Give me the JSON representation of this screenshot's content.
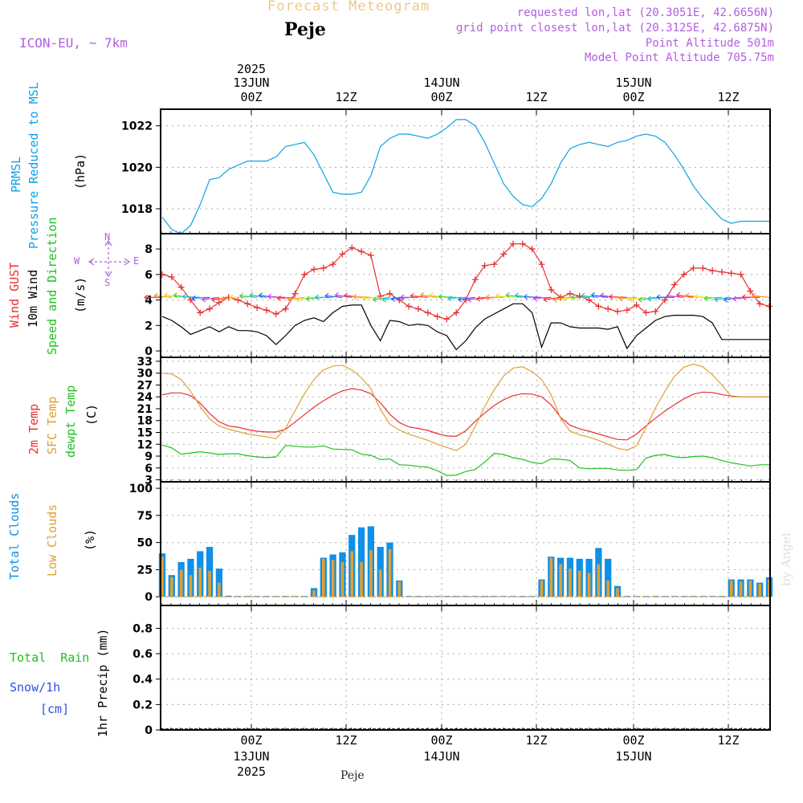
{
  "header": {
    "title": "Forecast Meteogram",
    "location": "Peje",
    "model": "ICON-EU, ~ 7km",
    "requested": "requested lon,lat (20.3051E, 42.6656N)",
    "gridpoint": "grid point closest lon,lat (20.3125E, 42.6875N)",
    "point_alt": "Point Altitude 501m",
    "model_alt": "Model Point Altitude 705.75m"
  },
  "top_axis": [
    {
      "lines": [
        "2025",
        "13JUN",
        "00Z"
      ]
    },
    {
      "lines": [
        "",
        "",
        "12Z"
      ]
    },
    {
      "lines": [
        "",
        "14JUN",
        "00Z"
      ]
    },
    {
      "lines": [
        "",
        "",
        "12Z"
      ]
    },
    {
      "lines": [
        "",
        "15JUN",
        "00Z"
      ]
    },
    {
      "lines": [
        "",
        "",
        "12Z"
      ]
    }
  ],
  "bottom_axis": [
    {
      "lines": [
        "00Z",
        "13JUN",
        "2025"
      ]
    },
    {
      "lines": [
        "12Z",
        "",
        ""
      ]
    },
    {
      "lines": [
        "00Z",
        "14JUN",
        ""
      ]
    },
    {
      "lines": [
        "12Z",
        "",
        ""
      ]
    },
    {
      "lines": [
        "00Z",
        "15JUN",
        ""
      ]
    },
    {
      "lines": [
        "12Z",
        "",
        ""
      ]
    }
  ],
  "footer_location": "Peje",
  "watermark": "by Angel",
  "panel_labels": {
    "pressure": {
      "l1": "PRMSL",
      "l2": "Pressure Reduced to MSL",
      "unit": "(hPa)"
    },
    "wind": {
      "l1": "Wind GUST",
      "l2": "10m Wind",
      "l3": "Speed and Direction",
      "unit": "(m/s)",
      "compass_n": "N",
      "compass_s": "S",
      "compass_w": "W",
      "compass_e": "E"
    },
    "temp": {
      "l1": "2m Temp",
      "l2": "SFC Temp",
      "l3": "dewpt Temp",
      "unit": "(C)"
    },
    "cloud": {
      "l1": "Total Clouds",
      "l2": "Low Clouds",
      "unit": "(%)"
    },
    "precip": {
      "l1": "Total",
      "l1b": "Rain",
      "l2": "Snow/1h",
      "l3": "[cm]",
      "unit": "1hr Precip (mm)"
    }
  },
  "colors": {
    "pressure": "#10a0e8",
    "gust": "#e83030",
    "wind": "#000000",
    "temp2m": "#e83030",
    "sfc": "#e0a030",
    "dewpt": "#20c020",
    "total_cloud": "#1090e8",
    "low_cloud": "#e0a030",
    "rain": "#20c020",
    "snow": "#3050e0",
    "label_purple": "#b060e0"
  },
  "chart_data": [
    {
      "type": "line",
      "name": "pressure",
      "ylabel": "(hPa)",
      "ylim": [
        1016.8,
        1022.8
      ],
      "yticks": [
        1018,
        1020,
        1022
      ],
      "x_hours": [
        0,
        1,
        2,
        3,
        4,
        5,
        6,
        7,
        8,
        9,
        10,
        11,
        12,
        13,
        14,
        15,
        16,
        17,
        18,
        19,
        20,
        21,
        22,
        23,
        24,
        25,
        26,
        27,
        28,
        29,
        30,
        31,
        32,
        33,
        34,
        35,
        36,
        37,
        38,
        39,
        40,
        41,
        42,
        43,
        44,
        45,
        46,
        47,
        48,
        49,
        50,
        51,
        52,
        53,
        54,
        55,
        56,
        57,
        58,
        59,
        60,
        61,
        62,
        63,
        64
      ],
      "series": [
        {
          "name": "PRMSL",
          "values": [
            1017.6,
            1017.0,
            1016.8,
            1017.2,
            1018.2,
            1019.4,
            1019.5,
            1019.9,
            1020.1,
            1020.3,
            1020.3,
            1020.3,
            1020.5,
            1021.0,
            1021.1,
            1021.2,
            1020.6,
            1019.7,
            1018.8,
            1018.7,
            1018.7,
            1018.8,
            1019.6,
            1021.0,
            1021.4,
            1021.6,
            1021.6,
            1021.5,
            1021.4,
            1021.6,
            1021.9,
            1022.3,
            1022.3,
            1022.0,
            1021.2,
            1020.2,
            1019.2,
            1018.6,
            1018.2,
            1018.1,
            1018.5,
            1019.2,
            1020.2,
            1020.9,
            1021.1,
            1021.2,
            1021.1,
            1021.0,
            1021.2,
            1021.3,
            1021.5,
            1021.6,
            1021.5,
            1021.2,
            1020.6,
            1019.9,
            1019.1,
            1018.5,
            1018.0,
            1017.5,
            1017.3,
            1017.4,
            1017.4,
            1017.4,
            1017.4
          ]
        }
      ]
    },
    {
      "type": "line",
      "name": "wind",
      "ylabel": "(m/s)",
      "ylim": [
        -0.5,
        9.2
      ],
      "yticks": [
        0,
        2,
        4,
        6,
        8
      ],
      "x_hours": [
        0,
        1,
        2,
        3,
        4,
        5,
        6,
        7,
        8,
        9,
        10,
        11,
        12,
        13,
        14,
        15,
        16,
        17,
        18,
        19,
        20,
        21,
        22,
        23,
        24,
        25,
        26,
        27,
        28,
        29,
        30,
        31,
        32,
        33,
        34,
        35,
        36,
        37,
        38,
        39,
        40,
        41,
        42,
        43,
        44,
        45,
        46,
        47,
        48,
        49,
        50,
        51,
        52,
        53,
        54,
        55,
        56,
        57,
        58,
        59,
        60,
        61,
        62,
        63,
        64
      ],
      "series": [
        {
          "name": "Wind GUST",
          "values": [
            6.0,
            5.8,
            5.0,
            4.0,
            3.0,
            3.3,
            3.8,
            4.2,
            4.0,
            3.7,
            3.4,
            3.2,
            2.9,
            3.3,
            4.5,
            6.0,
            6.4,
            6.5,
            6.8,
            7.6,
            8.1,
            7.8,
            7.5,
            4.3,
            4.5,
            4.0,
            3.5,
            3.3,
            3.0,
            2.7,
            2.5,
            3.0,
            4.0,
            5.6,
            6.7,
            6.8,
            7.6,
            8.4,
            8.4,
            8.0,
            6.8,
            4.8,
            4.2,
            4.5,
            4.3,
            4.0,
            3.5,
            3.3,
            3.1,
            3.2,
            3.6,
            3.0,
            3.1,
            4.0,
            5.2,
            6.0,
            6.5,
            6.5,
            6.3,
            6.2,
            6.1,
            6.0,
            4.7,
            3.7,
            3.5
          ]
        },
        {
          "name": "10m Wind",
          "values": [
            2.7,
            2.4,
            1.9,
            1.3,
            1.6,
            1.9,
            1.5,
            1.9,
            1.6,
            1.6,
            1.5,
            1.2,
            0.5,
            1.2,
            2.0,
            2.4,
            2.6,
            2.3,
            3.0,
            3.5,
            3.6,
            3.6,
            2.0,
            0.8,
            2.4,
            2.3,
            2.0,
            2.1,
            2.0,
            1.5,
            1.2,
            0.1,
            0.8,
            1.8,
            2.5,
            2.9,
            3.3,
            3.7,
            3.7,
            3.0,
            0.3,
            2.2,
            2.2,
            1.9,
            1.8,
            1.8,
            1.8,
            1.7,
            1.9,
            0.2,
            1.2,
            1.8,
            2.4,
            2.7,
            2.8,
            2.8,
            2.8,
            2.7,
            2.2,
            0.9,
            0.9,
            0.9,
            0.9,
            0.9,
            0.9
          ]
        }
      ]
    },
    {
      "type": "line",
      "name": "temperature",
      "ylabel": "(C)",
      "ylim": [
        2.5,
        34
      ],
      "yticks": [
        3,
        6,
        9,
        12,
        15,
        18,
        21,
        24,
        27,
        30,
        33
      ],
      "x_hours": [
        0,
        1,
        2,
        3,
        4,
        5,
        6,
        7,
        8,
        9,
        10,
        11,
        12,
        13,
        14,
        15,
        16,
        17,
        18,
        19,
        20,
        21,
        22,
        23,
        24,
        25,
        26,
        27,
        28,
        29,
        30,
        31,
        32,
        33,
        34,
        35,
        36,
        37,
        38,
        39,
        40,
        41,
        42,
        43,
        44,
        45,
        46,
        47,
        48,
        49,
        50,
        51,
        52,
        53,
        54,
        55,
        56,
        57,
        58,
        59,
        60,
        61,
        62,
        63,
        64
      ],
      "series": [
        {
          "name": "2m Temp",
          "values": [
            24.5,
            25.0,
            25.0,
            24.3,
            22.4,
            19.8,
            17.7,
            16.6,
            16.3,
            15.7,
            15.3,
            15.1,
            15.1,
            15.8,
            17.6,
            19.5,
            21.4,
            23.0,
            24.4,
            25.5,
            26.1,
            25.7,
            24.8,
            22.5,
            19.6,
            17.5,
            16.4,
            16.0,
            15.5,
            14.7,
            14.1,
            14.0,
            15.4,
            17.8,
            19.9,
            21.8,
            23.3,
            24.3,
            24.8,
            24.7,
            24.0,
            22.0,
            18.8,
            16.8,
            15.9,
            15.3,
            14.6,
            13.9,
            13.2,
            13.1,
            14.6,
            16.6,
            18.6,
            20.4,
            22.0,
            23.5,
            24.7,
            25.2,
            25.1,
            24.6,
            24.2,
            24.0,
            24.0,
            24.0,
            24.0
          ]
        },
        {
          "name": "SFC Temp",
          "values": [
            30.0,
            29.8,
            28.4,
            25.4,
            21.6,
            18.4,
            16.6,
            15.8,
            15.2,
            14.6,
            14.2,
            13.9,
            13.4,
            16.1,
            20.5,
            24.8,
            28.4,
            30.8,
            31.8,
            32.0,
            30.8,
            28.8,
            26.1,
            20.8,
            17.1,
            15.6,
            14.6,
            13.8,
            13.0,
            12.0,
            11.2,
            10.4,
            12.0,
            16.5,
            21.5,
            25.8,
            29.3,
            31.3,
            31.6,
            30.4,
            28.4,
            24.5,
            18.6,
            15.3,
            14.4,
            13.8,
            13.0,
            12.0,
            11.0,
            10.5,
            11.6,
            16.2,
            21.2,
            25.4,
            29.2,
            31.5,
            32.3,
            31.6,
            29.6,
            27.0,
            24.0,
            24.0,
            24.0,
            24.0,
            24.0
          ]
        },
        {
          "name": "dewpt Temp",
          "values": [
            11.8,
            11.1,
            9.5,
            9.8,
            10.1,
            9.8,
            9.4,
            9.6,
            9.6,
            9.1,
            8.8,
            8.6,
            8.8,
            11.7,
            11.5,
            11.3,
            11.3,
            11.6,
            10.8,
            10.7,
            10.6,
            9.5,
            9.2,
            8.1,
            8.3,
            6.8,
            6.7,
            6.4,
            6.2,
            5.3,
            4.1,
            4.2,
            5.1,
            5.6,
            7.5,
            9.7,
            9.4,
            8.6,
            8.2,
            7.4,
            7.1,
            8.3,
            8.2,
            7.9,
            6.0,
            5.8,
            5.9,
            5.9,
            5.5,
            5.4,
            5.6,
            8.5,
            9.2,
            9.4,
            8.8,
            8.6,
            8.9,
            9.0,
            8.6,
            7.9,
            7.3,
            6.9,
            6.5,
            6.8,
            6.8
          ]
        }
      ]
    },
    {
      "type": "bar",
      "name": "clouds",
      "ylabel": "(%)",
      "ylim": [
        -8,
        106
      ],
      "yticks": [
        0,
        25,
        50,
        75,
        100
      ],
      "x_hours": [
        0,
        1,
        2,
        3,
        4,
        5,
        6,
        7,
        8,
        9,
        10,
        11,
        12,
        13,
        14,
        15,
        16,
        17,
        18,
        19,
        20,
        21,
        22,
        23,
        24,
        25,
        26,
        27,
        28,
        29,
        30,
        31,
        32,
        33,
        34,
        35,
        36,
        37,
        38,
        39,
        40,
        41,
        42,
        43,
        44,
        45,
        46,
        47,
        48,
        49,
        50,
        51,
        52,
        53,
        54,
        55,
        56,
        57,
        58,
        59,
        60,
        61,
        62,
        63,
        64
      ],
      "series": [
        {
          "name": "Total Clouds",
          "values": [
            40,
            20,
            32,
            35,
            42,
            46,
            26,
            1,
            0,
            0,
            0,
            0,
            0,
            0,
            0,
            0,
            8,
            36,
            39,
            41,
            57,
            64,
            65,
            46,
            50,
            15,
            0,
            0,
            0,
            0,
            0,
            0,
            0,
            0,
            0,
            0,
            0,
            0,
            0,
            0,
            16,
            37,
            36,
            36,
            35,
            35,
            45,
            35,
            10,
            0,
            0,
            0,
            0,
            0,
            0,
            0,
            0,
            0,
            0,
            0,
            16,
            16,
            16,
            13,
            18
          ]
        },
        {
          "name": "Low Clouds",
          "values": [
            37,
            18,
            25,
            20,
            27,
            24,
            13,
            0,
            0,
            0,
            0,
            0,
            0,
            0,
            0,
            0,
            6,
            35,
            34,
            32,
            42,
            32,
            43,
            25,
            44,
            14,
            0,
            0,
            0,
            0,
            0,
            0,
            0,
            0,
            0,
            0,
            0,
            0,
            0,
            0,
            15,
            36,
            30,
            26,
            24,
            22,
            30,
            15,
            8,
            0,
            0,
            0,
            0,
            0,
            0,
            0,
            0,
            0,
            0,
            0,
            15,
            14,
            15,
            12,
            16
          ]
        }
      ]
    },
    {
      "type": "bar",
      "name": "precip",
      "ylabel": "1hr Precip (mm)",
      "ylim": [
        0,
        0.98
      ],
      "yticks": [
        0,
        0.2,
        0.4,
        0.6,
        0.8
      ],
      "x_hours": [
        0,
        1,
        2,
        3,
        4,
        5,
        6,
        7,
        8,
        9,
        10,
        11,
        12,
        13,
        14,
        15,
        16,
        17,
        18,
        19,
        20,
        21,
        22,
        23,
        24,
        25,
        26,
        27,
        28,
        29,
        30,
        31,
        32,
        33,
        34,
        35,
        36,
        37,
        38,
        39,
        40,
        41,
        42,
        43,
        44,
        45,
        46,
        47,
        48,
        49,
        50,
        51,
        52,
        53,
        54,
        55,
        56,
        57,
        58,
        59,
        60,
        61,
        62,
        63,
        64
      ],
      "series": [
        {
          "name": "Total Rain",
          "values": [
            0,
            0,
            0,
            0,
            0,
            0,
            0,
            0,
            0,
            0,
            0,
            0,
            0,
            0,
            0,
            0,
            0,
            0,
            0,
            0,
            0,
            0,
            0,
            0,
            0,
            0,
            0,
            0,
            0,
            0,
            0,
            0,
            0,
            0,
            0,
            0,
            0,
            0,
            0,
            0,
            0,
            0,
            0,
            0,
            0,
            0,
            0,
            0,
            0,
            0,
            0,
            0,
            0,
            0,
            0,
            0,
            0,
            0,
            0,
            0,
            0,
            0,
            0,
            0,
            0
          ]
        }
      ]
    }
  ]
}
